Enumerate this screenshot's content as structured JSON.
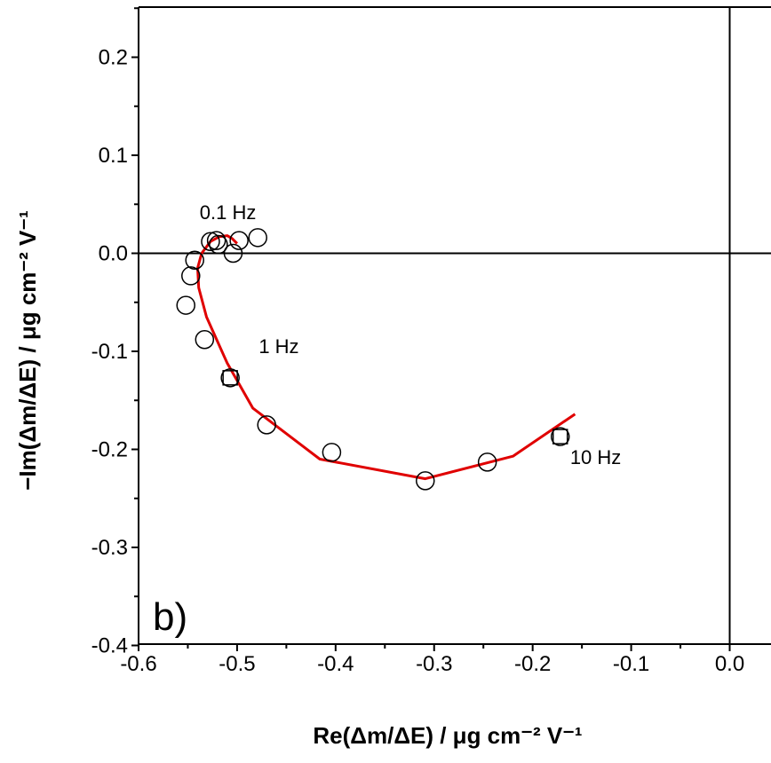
{
  "chart_data": {
    "type": "scatter",
    "panel_label": "b)",
    "xlabel": "Re(Δm/ΔE) / μg cm⁻² V⁻¹",
    "ylabel": "−Im(Δm/ΔE) / μg cm⁻² V⁻¹",
    "xlim": [
      -0.6,
      0.0
    ],
    "ylim": [
      -0.4,
      0.25
    ],
    "x_ticks": [
      -0.6,
      -0.5,
      -0.4,
      -0.3,
      -0.2,
      -0.1,
      0.0
    ],
    "x_tick_labels": [
      "-0.6",
      "-0.5",
      "-0.4",
      "-0.3",
      "-0.2",
      "-0.1",
      "0.0"
    ],
    "y_ticks": [
      -0.4,
      -0.3,
      -0.2,
      -0.1,
      0.0,
      0.1,
      0.2
    ],
    "y_tick_labels": [
      "-0.4",
      "-0.3",
      "-0.2",
      "-0.1",
      "0.0",
      "0.1",
      "0.2"
    ],
    "reference_lines": {
      "x": 0.0,
      "y": 0.0
    },
    "series": [
      {
        "marker": "open-circle",
        "color": "#000000",
        "x": [
          -0.172,
          -0.246,
          -0.309,
          -0.404,
          -0.47,
          -0.507,
          -0.533,
          -0.552,
          -0.547,
          -0.543,
          -0.527,
          -0.521,
          -0.519,
          -0.504,
          -0.498,
          -0.479
        ],
        "y": [
          -0.187,
          -0.213,
          -0.232,
          -0.203,
          -0.175,
          -0.127,
          -0.088,
          -0.053,
          -0.023,
          -0.007,
          0.012,
          0.013,
          0.009,
          0.0,
          0.013,
          0.016
        ]
      },
      {
        "marker": "open-square",
        "color": "#000000",
        "x": [
          -0.172,
          -0.507
        ],
        "y": [
          -0.187,
          -0.127
        ]
      },
      {
        "marker": "line",
        "color": "#e00000",
        "x": [
          -0.157,
          -0.22,
          -0.309,
          -0.416,
          -0.484,
          -0.51,
          -0.531,
          -0.539,
          -0.54,
          -0.536,
          -0.527,
          -0.518,
          -0.51,
          -0.505,
          -0.5
        ],
        "y": [
          -0.164,
          -0.207,
          -0.23,
          -0.21,
          -0.158,
          -0.112,
          -0.065,
          -0.035,
          -0.015,
          0.0,
          0.012,
          0.017,
          0.018,
          0.015,
          0.01
        ]
      }
    ],
    "annotations": [
      {
        "text": "0.1 Hz",
        "x": -0.538,
        "y": 0.035
      },
      {
        "text": "1 Hz",
        "x": -0.478,
        "y": -0.102
      },
      {
        "text": "10 Hz",
        "x": -0.162,
        "y": -0.215
      }
    ]
  }
}
